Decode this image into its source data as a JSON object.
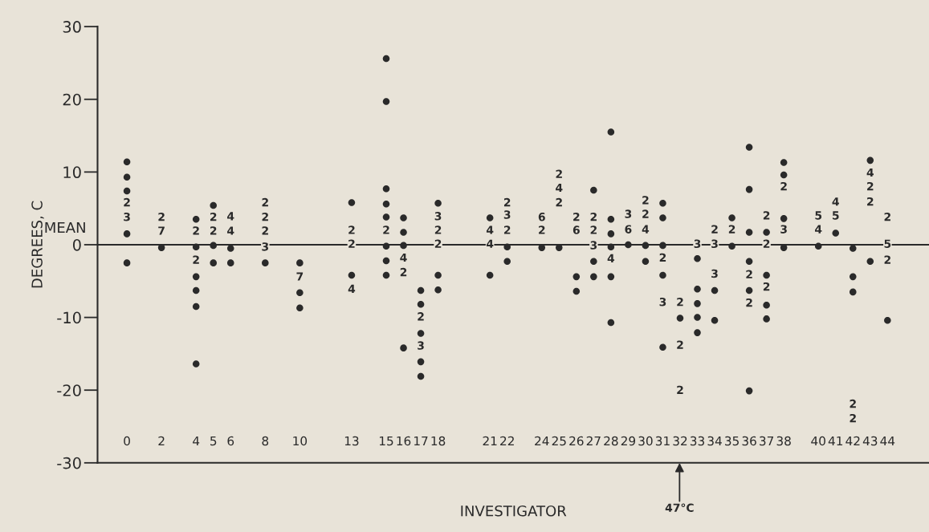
{
  "chart_data": {
    "type": "scatter",
    "xlabel": "INVESTIGATOR",
    "ylabel": "DEGREES, C",
    "xlim": [
      -1.7,
      46.4
    ],
    "ylim": [
      -30,
      30
    ],
    "xticks": [
      0,
      2,
      4,
      5,
      6,
      8,
      10,
      13,
      15,
      16,
      17,
      18,
      21,
      22,
      24,
      25,
      26,
      27,
      28,
      29,
      30,
      31,
      32,
      33,
      34,
      35,
      36,
      37,
      38,
      40,
      41,
      42,
      43,
      44
    ],
    "yticks": [
      -30,
      -20,
      -10,
      0,
      10,
      20,
      30
    ],
    "grid": false,
    "legend": false,
    "marker": "circle",
    "ref_lines": [
      {
        "axis": "y",
        "value": 0,
        "label": "MEAN",
        "color": "#2a2a2a"
      }
    ],
    "series": [
      {
        "color": "#2a2a2a",
        "x": [
          0,
          0,
          0,
          0,
          0,
          2,
          4,
          4,
          4,
          4,
          4,
          4,
          5,
          5,
          5,
          6,
          6,
          8,
          10,
          10,
          10,
          13,
          13,
          15,
          15,
          15,
          15,
          15,
          15,
          15,
          15,
          16,
          16,
          16,
          16,
          17,
          17,
          17,
          17,
          17,
          18,
          18,
          18,
          21,
          21,
          22,
          22,
          24,
          25,
          26,
          26,
          27,
          27,
          27,
          28,
          28,
          28,
          28,
          28,
          28,
          29,
          30,
          30,
          31,
          31,
          31,
          31,
          31,
          32,
          33,
          33,
          33,
          33,
          33,
          34,
          34,
          35,
          35,
          36,
          36,
          36,
          36,
          36,
          36,
          37,
          37,
          37,
          37,
          38,
          38,
          38,
          38,
          40,
          41,
          42,
          42,
          42,
          43,
          43,
          44
        ],
        "values": [
          11.4,
          9.3,
          7.4,
          1.5,
          -2.5,
          -0.4,
          3.5,
          -0.3,
          -4.4,
          -6.3,
          -8.5,
          -16.4,
          5.4,
          -0.1,
          -2.5,
          -0.5,
          -2.5,
          -2.5,
          -2.5,
          -6.6,
          -8.7,
          5.8,
          -4.2,
          25.6,
          19.7,
          7.7,
          5.6,
          3.8,
          -0.2,
          -2.2,
          -4.2,
          3.7,
          1.7,
          -0.1,
          -14.2,
          -6.3,
          -8.2,
          -12.2,
          -16.1,
          -18.1,
          5.7,
          -4.2,
          -6.2,
          3.7,
          -4.2,
          -0.3,
          -2.3,
          -0.4,
          -0.4,
          -4.4,
          -6.4,
          7.5,
          -2.3,
          -4.4,
          15.5,
          3.5,
          1.5,
          -0.3,
          -4.4,
          -10.7,
          0,
          -0.1,
          -2.3,
          5.7,
          3.7,
          -0.1,
          -4.2,
          -14.1,
          -10.1,
          -1.9,
          -6.1,
          -8.1,
          -10.0,
          -12.1,
          -6.3,
          -10.4,
          3.7,
          -0.2,
          13.4,
          7.6,
          1.7,
          -2.3,
          -6.3,
          -20.1,
          1.7,
          -4.2,
          -8.3,
          -10.2,
          11.3,
          9.6,
          3.6,
          -0.4,
          -0.2,
          1.6,
          -0.5,
          -4.4,
          -6.5,
          11.6,
          -2.3,
          -10.4
        ]
      }
    ],
    "annotations": [
      {
        "text": "2",
        "x": 0,
        "y": 5.7
      },
      {
        "text": "3",
        "x": 0,
        "y": 3.7
      },
      {
        "text": "2",
        "x": 2,
        "y": 3.7
      },
      {
        "text": "7",
        "x": 2,
        "y": 1.8
      },
      {
        "text": "2",
        "x": 4,
        "y": 1.8
      },
      {
        "text": "2",
        "x": 4,
        "y": -2.2
      },
      {
        "text": "2",
        "x": 5,
        "y": 3.7
      },
      {
        "text": "2",
        "x": 5,
        "y": 1.8
      },
      {
        "text": "4",
        "x": 6,
        "y": 3.8
      },
      {
        "text": "4",
        "x": 6,
        "y": 1.8
      },
      {
        "text": "2",
        "x": 8,
        "y": 5.7
      },
      {
        "text": "2",
        "x": 8,
        "y": 3.7
      },
      {
        "text": "2",
        "x": 8,
        "y": 1.8
      },
      {
        "text": "3",
        "x": 8,
        "y": -0.4
      },
      {
        "text": "7",
        "x": 10,
        "y": -4.5
      },
      {
        "text": "2",
        "x": 13,
        "y": 1.9
      },
      {
        "text": "2",
        "x": 13,
        "y": 0
      },
      {
        "text": "4",
        "x": 13,
        "y": -6.2
      },
      {
        "text": "2",
        "x": 15,
        "y": 1.9
      },
      {
        "text": "4",
        "x": 16,
        "y": -1.9
      },
      {
        "text": "2",
        "x": 16,
        "y": -3.9
      },
      {
        "text": "2",
        "x": 17,
        "y": -10.0
      },
      {
        "text": "3",
        "x": 17,
        "y": -14.0
      },
      {
        "text": "3",
        "x": 18,
        "y": 3.8
      },
      {
        "text": "2",
        "x": 18,
        "y": 1.9
      },
      {
        "text": "2",
        "x": 18,
        "y": 0
      },
      {
        "text": "4",
        "x": 21,
        "y": 1.9
      },
      {
        "text": "4",
        "x": 21,
        "y": 0
      },
      {
        "text": "2",
        "x": 22,
        "y": 5.7
      },
      {
        "text": "3",
        "x": 22,
        "y": 4.0
      },
      {
        "text": "2",
        "x": 22,
        "y": 1.9
      },
      {
        "text": "6",
        "x": 24,
        "y": 3.7
      },
      {
        "text": "2",
        "x": 24,
        "y": 1.9
      },
      {
        "text": "2",
        "x": 25,
        "y": 9.6
      },
      {
        "text": "4",
        "x": 25,
        "y": 7.7
      },
      {
        "text": "2",
        "x": 25,
        "y": 5.7
      },
      {
        "text": "2",
        "x": 26,
        "y": 3.7
      },
      {
        "text": "6",
        "x": 26,
        "y": 1.9
      },
      {
        "text": "2",
        "x": 27,
        "y": 3.7
      },
      {
        "text": "2",
        "x": 27,
        "y": 1.9
      },
      {
        "text": "3",
        "x": 27,
        "y": -0.2
      },
      {
        "text": "4",
        "x": 28,
        "y": -2.0
      },
      {
        "text": "3",
        "x": 29,
        "y": 4.1
      },
      {
        "text": "6",
        "x": 29,
        "y": 2.0
      },
      {
        "text": "2",
        "x": 30,
        "y": 6.0
      },
      {
        "text": "2",
        "x": 30,
        "y": 4.1
      },
      {
        "text": "4",
        "x": 30,
        "y": 2.0
      },
      {
        "text": "2",
        "x": 31,
        "y": -1.9
      },
      {
        "text": "3",
        "x": 31,
        "y": -8.0
      },
      {
        "text": "2",
        "x": 32,
        "y": -8.0
      },
      {
        "text": "2",
        "x": 32,
        "y": -13.9
      },
      {
        "text": "2",
        "x": 32,
        "y": -20.1
      },
      {
        "text": "3",
        "x": 33,
        "y": 0
      },
      {
        "text": "2",
        "x": 34,
        "y": 2.0
      },
      {
        "text": "3",
        "x": 34,
        "y": 0
      },
      {
        "text": "3",
        "x": 34,
        "y": -4.1
      },
      {
        "text": "2",
        "x": 35,
        "y": 2.0
      },
      {
        "text": "2",
        "x": 36,
        "y": -4.2
      },
      {
        "text": "2",
        "x": 36,
        "y": -8.1
      },
      {
        "text": "2",
        "x": 37,
        "y": 3.9
      },
      {
        "text": "2",
        "x": 37,
        "y": 0
      },
      {
        "text": "2",
        "x": 37,
        "y": -5.9
      },
      {
        "text": "2",
        "x": 38,
        "y": 7.9
      },
      {
        "text": "3",
        "x": 38,
        "y": 2.0
      },
      {
        "text": "5",
        "x": 40,
        "y": 3.9
      },
      {
        "text": "4",
        "x": 40,
        "y": 2.0
      },
      {
        "text": "4",
        "x": 41,
        "y": 5.8
      },
      {
        "text": "5",
        "x": 41,
        "y": 3.9
      },
      {
        "text": "2",
        "x": 42,
        "y": -22.0
      },
      {
        "text": "2",
        "x": 42,
        "y": -24.0
      },
      {
        "text": "4",
        "x": 43,
        "y": 9.8
      },
      {
        "text": "2",
        "x": 43,
        "y": 7.9
      },
      {
        "text": "2",
        "x": 43,
        "y": 5.8
      },
      {
        "text": "2",
        "x": 44,
        "y": 3.7
      },
      {
        "text": "5",
        "x": 44,
        "y": 0
      },
      {
        "text": "2",
        "x": 44,
        "y": -2.2
      },
      "47°C"
    ]
  }
}
